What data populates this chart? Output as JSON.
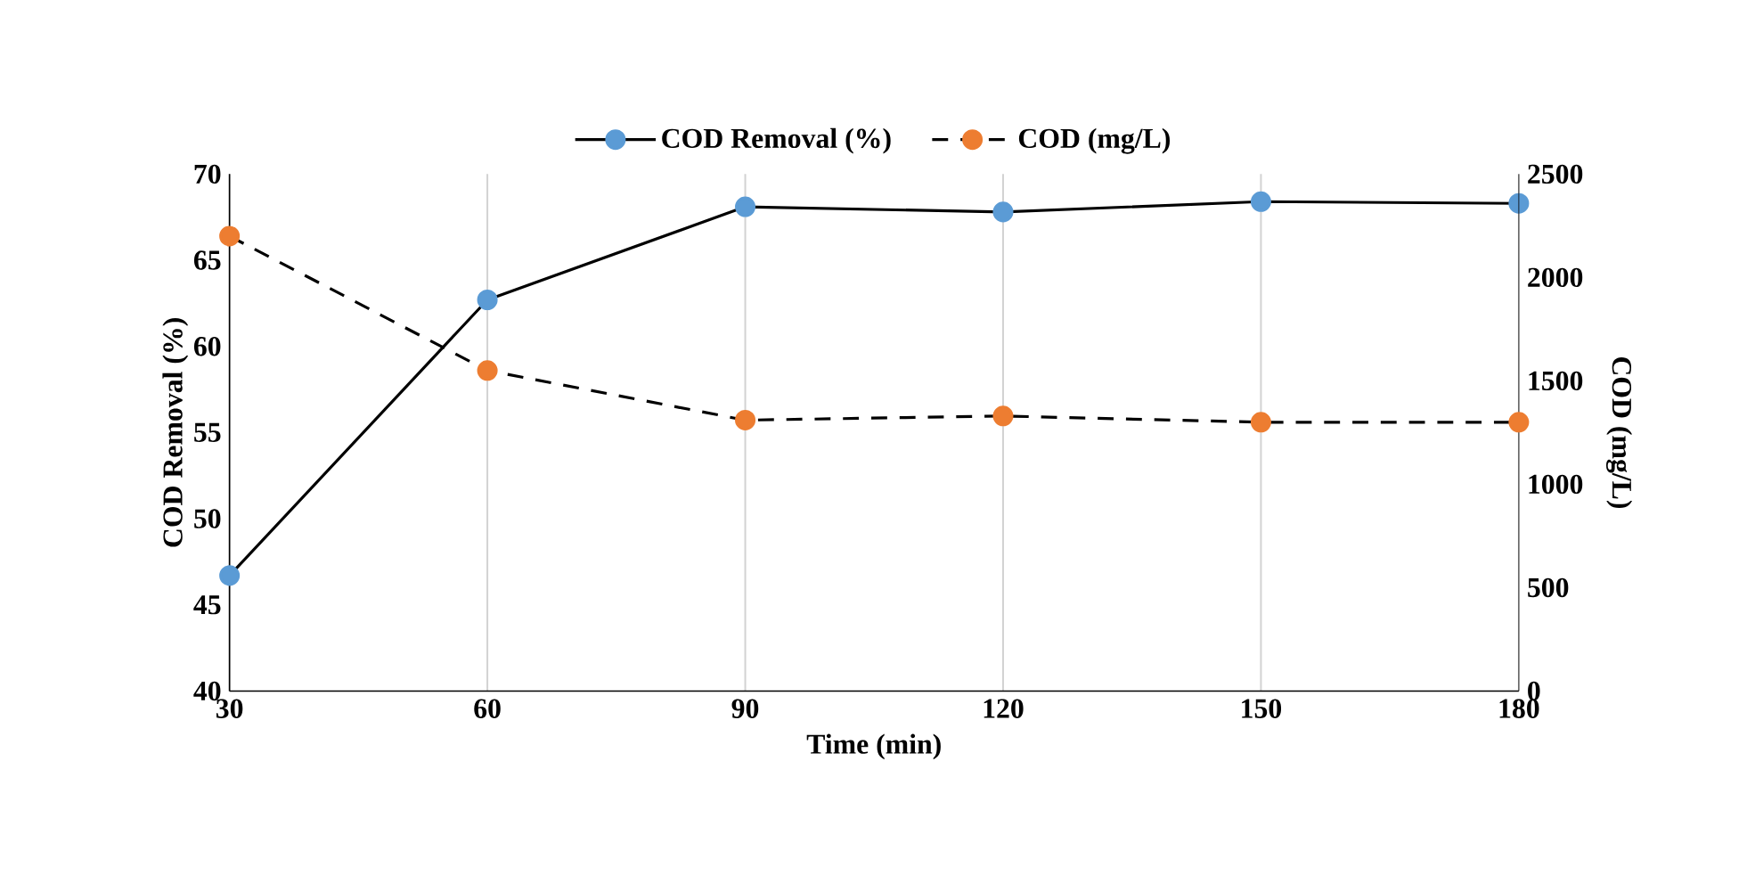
{
  "chart_data": {
    "type": "line",
    "xlabel": "Time (min)",
    "ylabel": "COD Removal (%)",
    "y2label": "COD  (mg/L)",
    "x": [
      30,
      60,
      90,
      120,
      150,
      180
    ],
    "series": [
      {
        "name": "COD Removal (%)",
        "color": "#5b9bd5",
        "values": [
          46.7,
          62.7,
          68.1,
          67.8,
          68.4,
          68.3
        ],
        "line_style": "solid"
      },
      {
        "name": "COD (mg/L)",
        "color": "#ed7d31",
        "values": [
          2200,
          1550,
          1310,
          1330,
          1300,
          1300
        ],
        "line_style": "dashed",
        "axis": "y2"
      }
    ],
    "xlim": [
      30,
      180
    ],
    "xticks": [
      30,
      60,
      90,
      120,
      150,
      180
    ],
    "ylim": [
      40,
      70
    ],
    "yticks": [
      40,
      45,
      50,
      55,
      60,
      65,
      70
    ],
    "y2lim": [
      0,
      2500
    ],
    "y2ticks": [
      0,
      500,
      1000,
      1500,
      2000,
      2500
    ],
    "grid": "x",
    "legend": "top",
    "marker": "circle"
  }
}
